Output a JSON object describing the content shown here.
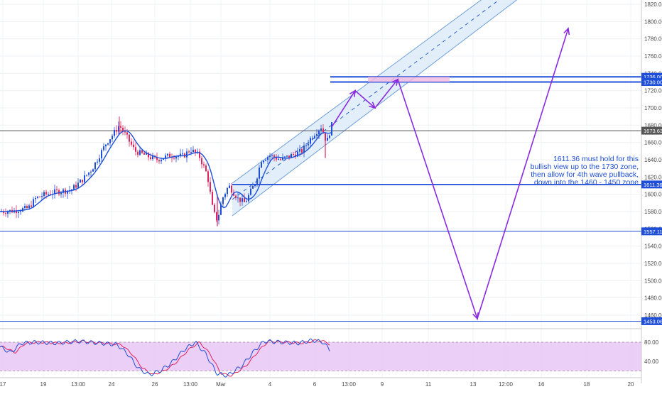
{
  "chart_data": [
    {
      "type": "candlestick",
      "ylim": [
        1440,
        1830
      ],
      "y_ticks": [
        "1820.00",
        "1800.00",
        "1780.00",
        "1760.00",
        "1740.00",
        "1720.00",
        "1700.00",
        "1680.00",
        "1660.00",
        "1640.00",
        "1620.00",
        "1600.00",
        "1580.00",
        "1560.00",
        "1540.00",
        "1520.00",
        "1500.00",
        "1480.00",
        "1460.00"
      ],
      "x_ticks": [
        "17",
        "19",
        "13:00",
        "24",
        "26",
        "13:00",
        "Mar",
        "4",
        "6",
        "13:00",
        "9",
        "11",
        "13",
        "12:00",
        "16",
        "18",
        "20"
      ],
      "grid": true,
      "price_levels": [
        {
          "label": "1736.00",
          "value": 1736,
          "color": "#1f4fd8"
        },
        {
          "label": "1730.00",
          "value": 1730,
          "color": "#1f4fd8"
        },
        {
          "label": "1673.63",
          "value": 1673.63,
          "color": "#555555"
        },
        {
          "label": "1611.36",
          "value": 1611.36,
          "color": "#1f4fd8"
        },
        {
          "label": "1557.11",
          "value": 1557.11,
          "color": "#1f4fd8"
        },
        {
          "label": "1453.06",
          "value": 1453.06,
          "color": "#1f4fd8"
        }
      ],
      "annotation": [
        "1611.36 must hold for this",
        "bullish view up to the 1730 zone,",
        "then allow for 4th wave pullback,",
        "down into the 1460 - 1450 zone"
      ],
      "projection_path": [
        {
          "label": "",
          "price": 1678
        },
        {
          "label": "",
          "price": 1720
        },
        {
          "label": "",
          "price": 1700
        },
        {
          "label": "",
          "price": 1733
        },
        {
          "label": "",
          "price": 1456
        },
        {
          "label": "",
          "price": 1792
        }
      ],
      "colors": {
        "up": "#1f4fd8",
        "down": "#e0245e",
        "ma": "#1f4fd8",
        "projection": "#8a2be2",
        "channel_fill": "#d6e8f8"
      }
    },
    {
      "type": "oscillator",
      "ylim": [
        0,
        100
      ],
      "y_ticks": [
        "80.00",
        "40.00"
      ],
      "band": [
        20,
        80
      ],
      "colors": {
        "k": "#1f4fd8",
        "d": "#e0245e",
        "band": "#e9c7f5"
      }
    }
  ]
}
